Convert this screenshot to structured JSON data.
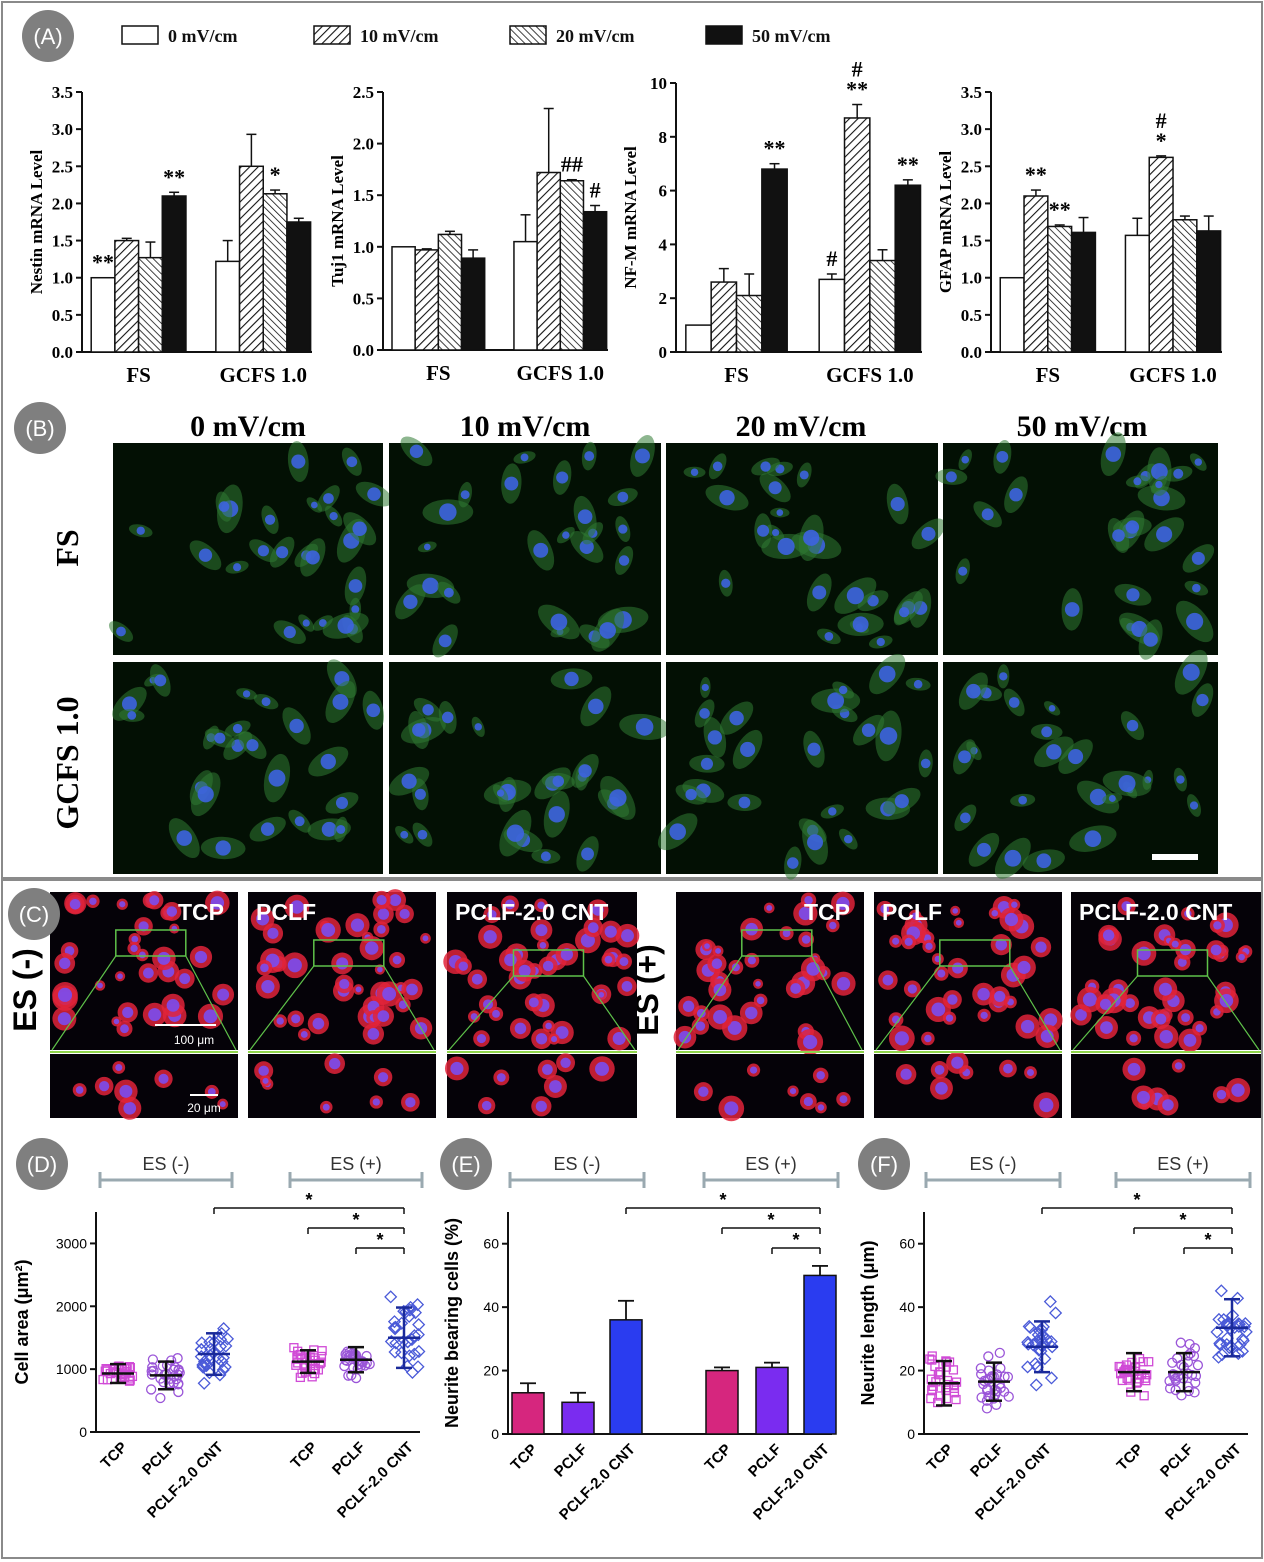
{
  "panel_labels": {
    "A": "(A)",
    "B": "(B)",
    "C": "(C)",
    "D": "(D)",
    "E": "(E)",
    "F": "(F)"
  },
  "colors": {
    "bar_black": "#111111",
    "pink": "#d6267e",
    "violet": "#7a2cf0",
    "blue": "#2a3cf0",
    "marker_pink": "#d04ad6",
    "marker_blue": "#4a5ad8",
    "bracket": "#9aa9b0"
  },
  "legend_A": [
    {
      "label": "0 mV/cm",
      "fill": "white"
    },
    {
      "label": "10 mV/cm",
      "fill": "hatch_fwd"
    },
    {
      "label": "20 mV/cm",
      "fill": "hatch_back"
    },
    {
      "label": "50 mV/cm",
      "fill": "black"
    }
  ],
  "chart_data": [
    {
      "type": "bar",
      "ylabel": "Nestin mRNA Level",
      "categories": [
        "FS",
        "GCFS 1.0"
      ],
      "ylim": [
        0,
        3.5
      ],
      "yticks": [
        "0.0",
        "0.5",
        "1.0",
        "1.5",
        "2.0",
        "2.5",
        "3.0",
        "3.5"
      ],
      "series": [
        {
          "name": "0 mV/cm",
          "values": [
            1.0,
            1.22
          ],
          "err": [
            0,
            0.28
          ]
        },
        {
          "name": "10 mV/cm",
          "values": [
            1.5,
            2.5
          ],
          "err": [
            0.03,
            0.43
          ]
        },
        {
          "name": "20 mV/cm",
          "values": [
            1.27,
            2.13
          ],
          "err": [
            0.21,
            0.05
          ]
        },
        {
          "name": "50 mV/cm",
          "values": [
            2.1,
            1.75
          ],
          "err": [
            0.05,
            0.05
          ]
        }
      ],
      "annotations": [
        [
          "**",
          "",
          ""
        ],
        [
          "",
          "",
          ""
        ],
        [
          "",
          "*",
          ""
        ],
        [
          "**",
          "",
          ""
        ]
      ]
    },
    {
      "type": "bar",
      "ylabel": "Tuj1 mRNA Level",
      "categories": [
        "FS",
        "GCFS 1.0"
      ],
      "ylim": [
        0,
        2.5
      ],
      "yticks": [
        "0.0",
        "0.5",
        "1.0",
        "1.5",
        "2.0",
        "2.5"
      ],
      "series": [
        {
          "name": "0 mV/cm",
          "values": [
            1.0,
            1.05
          ],
          "err": [
            0,
            0.26
          ]
        },
        {
          "name": "10 mV/cm",
          "values": [
            0.97,
            1.72
          ],
          "err": [
            0.01,
            0.62
          ]
        },
        {
          "name": "20 mV/cm",
          "values": [
            1.12,
            1.64
          ],
          "err": [
            0.03,
            0.01
          ]
        },
        {
          "name": "50 mV/cm",
          "values": [
            0.89,
            1.34
          ],
          "err": [
            0.08,
            0.06
          ]
        }
      ],
      "annotations": [
        [
          "",
          "",
          ""
        ],
        [
          "",
          "",
          ""
        ],
        [
          "",
          "##",
          ""
        ],
        [
          "",
          "#",
          ""
        ]
      ]
    },
    {
      "type": "bar",
      "ylabel": "NF-M mRNA Level",
      "categories": [
        "FS",
        "GCFS 1.0"
      ],
      "ylim": [
        0,
        10
      ],
      "yticks": [
        "0",
        "2",
        "4",
        "6",
        "8",
        "10"
      ],
      "series": [
        {
          "name": "0 mV/cm",
          "values": [
            1.0,
            2.7
          ],
          "err": [
            0,
            0.2
          ]
        },
        {
          "name": "10 mV/cm",
          "values": [
            2.6,
            8.7
          ],
          "err": [
            0.5,
            0.5
          ]
        },
        {
          "name": "20 mV/cm",
          "values": [
            2.1,
            3.4
          ],
          "err": [
            0.8,
            0.4
          ]
        },
        {
          "name": "50 mV/cm",
          "values": [
            6.8,
            6.2
          ],
          "err": [
            0.2,
            0.2
          ]
        }
      ],
      "annotations": [
        [
          "",
          "#",
          ""
        ],
        [
          "",
          "**",
          "#"
        ],
        [
          "",
          "",
          ""
        ],
        [
          "**",
          "**",
          ""
        ]
      ]
    },
    {
      "type": "bar",
      "ylabel": "GFAP mRNA Level",
      "categories": [
        "FS",
        "GCFS 1.0"
      ],
      "ylim": [
        0,
        3.5
      ],
      "yticks": [
        "0.0",
        "0.5",
        "1.0",
        "1.5",
        "2.0",
        "2.5",
        "3.0",
        "3.5"
      ],
      "series": [
        {
          "name": "0 mV/cm",
          "values": [
            1.0,
            1.57
          ],
          "err": [
            0,
            0.23
          ]
        },
        {
          "name": "10 mV/cm",
          "values": [
            2.1,
            2.62
          ],
          "err": [
            0.08,
            0.02
          ]
        },
        {
          "name": "20 mV/cm",
          "values": [
            1.69,
            1.78
          ],
          "err": [
            0.02,
            0.05
          ]
        },
        {
          "name": "50 mV/cm",
          "values": [
            1.61,
            1.63
          ],
          "err": [
            0.2,
            0.2
          ]
        }
      ],
      "annotations": [
        [
          "",
          "",
          ""
        ],
        [
          "**",
          "*",
          "#"
        ],
        [
          "**",
          "",
          ""
        ],
        [
          "",
          "",
          ""
        ]
      ]
    },
    {
      "type": "scatter",
      "panel": "D",
      "ylabel": "Cell area (μm²)",
      "ylim": [
        0,
        3500
      ],
      "yticks": [
        "0",
        "1000",
        "2000",
        "3000"
      ],
      "groups": [
        "ES (-)",
        "ES (+)"
      ],
      "categories": [
        "TCP",
        "PCLF",
        "PCLF-2.0 CNT",
        "TCP",
        "PCLF",
        "PCLF-2.0 CNT"
      ],
      "mean": [
        930,
        900,
        1240,
        1120,
        1150,
        1500
      ],
      "sd": [
        150,
        220,
        330,
        180,
        200,
        480
      ],
      "significance": [
        "*",
        "*",
        "*"
      ]
    },
    {
      "type": "bar",
      "panel": "E",
      "ylabel": "Neurite bearing cells (%)",
      "ylim": [
        0,
        70
      ],
      "yticks": [
        "0",
        "20",
        "40",
        "60"
      ],
      "groups": [
        "ES (-)",
        "ES (+)"
      ],
      "categories": [
        "TCP",
        "PCLF",
        "PCLF-2.0 CNT",
        "TCP",
        "PCLF",
        "PCLF-2.0 CNT"
      ],
      "values": [
        13,
        10,
        36,
        20,
        21,
        50
      ],
      "err": [
        3,
        3,
        6,
        1,
        1.5,
        3
      ],
      "significance": [
        "*",
        "*",
        "*"
      ]
    },
    {
      "type": "scatter",
      "panel": "F",
      "ylabel": "Neurite length (μm)",
      "ylim": [
        0,
        70
      ],
      "yticks": [
        "0",
        "20",
        "40",
        "60"
      ],
      "groups": [
        "ES (-)",
        "ES (+)"
      ],
      "categories": [
        "TCP",
        "PCLF",
        "PCLF-2.0 CNT",
        "TCP",
        "PCLF",
        "PCLF-2.0 CNT"
      ],
      "mean": [
        16,
        16.5,
        27.5,
        19.5,
        19.5,
        33.5
      ],
      "sd": [
        7,
        6,
        8,
        6,
        6,
        9
      ],
      "significance": [
        "*",
        "*",
        "*"
      ]
    }
  ],
  "panel_B": {
    "columns": [
      "0 mV/cm",
      "10 mV/cm",
      "20 mV/cm",
      "50 mV/cm"
    ],
    "rows": [
      "FS",
      "GCFS 1.0"
    ]
  },
  "panel_C": {
    "left_label": "ES (-)",
    "right_label": "ES (+)",
    "tiles": [
      "TCP",
      "PCLF",
      "PCLF-2.0 CNT",
      "TCP",
      "PCLF",
      "PCLF-2.0 CNT"
    ],
    "scale_big": "100 μm",
    "scale_small": "20 μm"
  }
}
